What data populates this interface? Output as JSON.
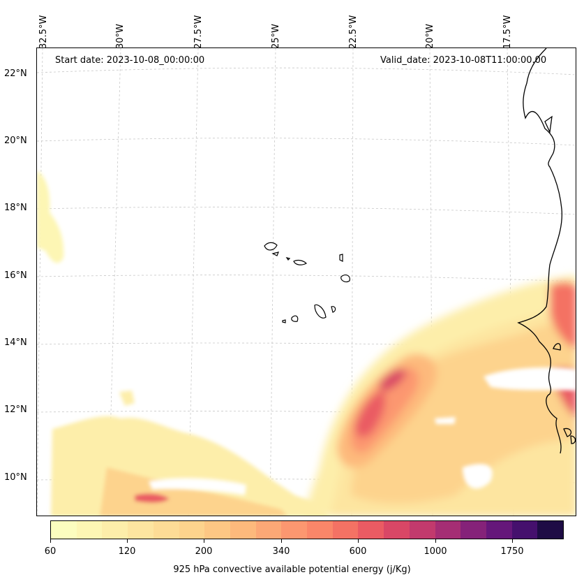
{
  "longitude_labels": [
    "32.5°W",
    "30°W",
    "27.5°W",
    "25°W",
    "22.5°W",
    "20°W",
    "17.5°W"
  ],
  "latitude_labels": [
    "22°N",
    "20°N",
    "18°N",
    "16°N",
    "14°N",
    "12°N",
    "10°N"
  ],
  "annotations": {
    "start_date": "Start date: 2023-10-08_00:00:00",
    "valid_date": "Valid_date: 2023-10-08T11:00:00.00"
  },
  "colorbar": {
    "label": "925 hPa convective available potential energy (j/Kg)",
    "tick_labels": [
      "60",
      "120",
      "200",
      "340",
      "600",
      "1000",
      "1750"
    ],
    "colors": [
      "#fcfdbf",
      "#fdf6b4",
      "#fdeeaa",
      "#fde5a0",
      "#fddc96",
      "#fdd38d",
      "#fdc784",
      "#fdb97c",
      "#fca876",
      "#fc9770",
      "#fa8669",
      "#f47264",
      "#ea5b63",
      "#d94766",
      "#c23a6d",
      "#a52e74",
      "#852279",
      "#65177a",
      "#45106d",
      "#1e0c45"
    ]
  }
}
